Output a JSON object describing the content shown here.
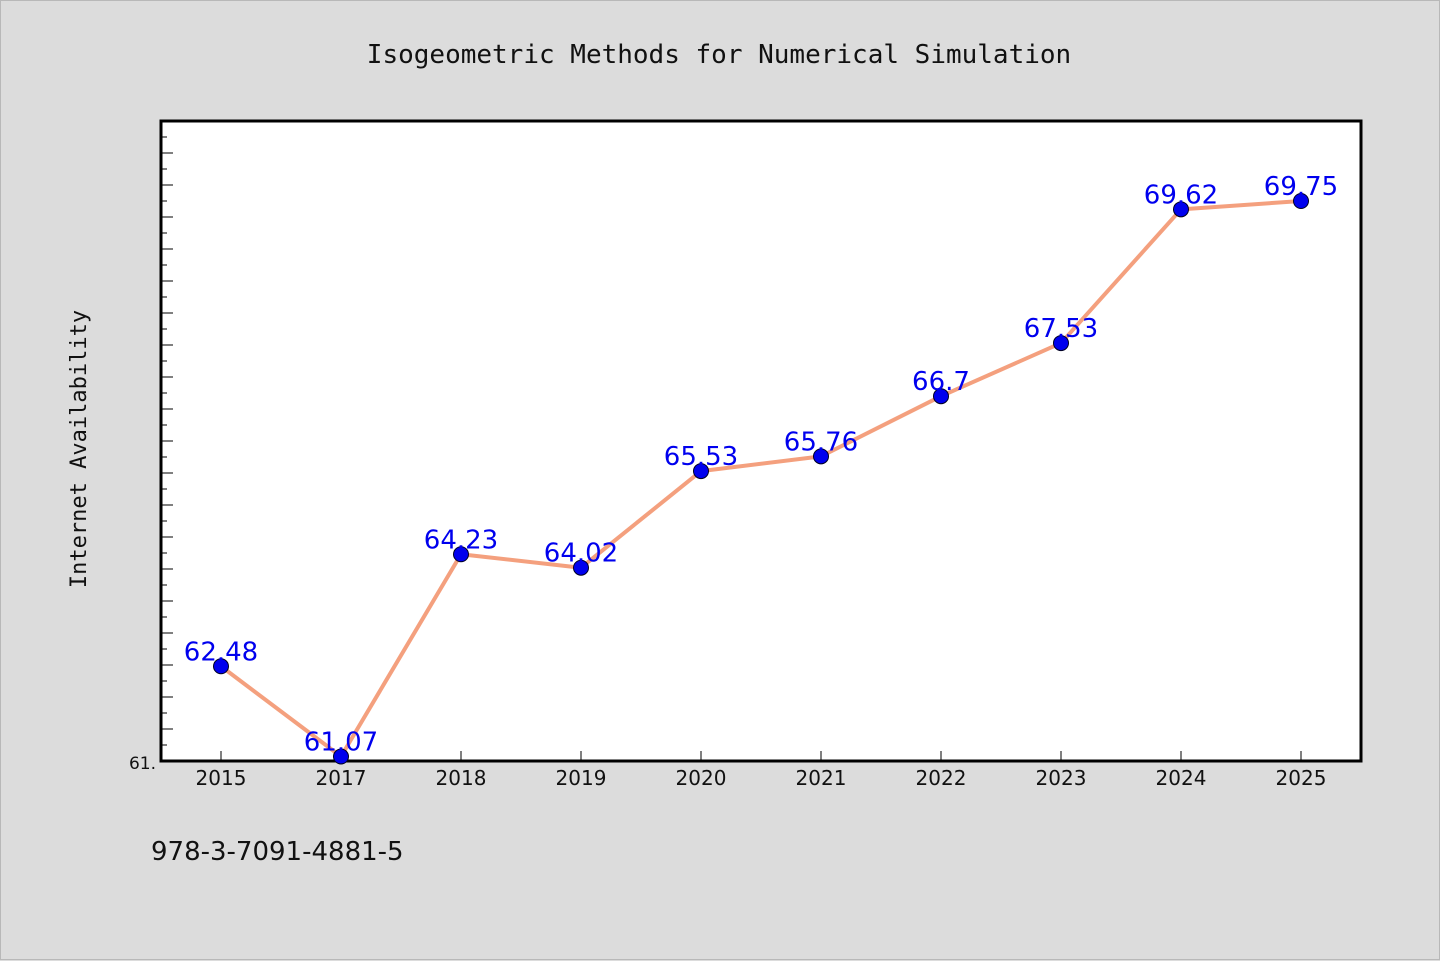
{
  "chart_data": {
    "type": "line",
    "title": "Isogeometric Methods for Numerical Simulation",
    "xlabel": "",
    "ylabel": "Internet Availability",
    "categories": [
      "2015",
      "2017",
      "2018",
      "2019",
      "2020",
      "2021",
      "2022",
      "2023",
      "2024",
      "2025"
    ],
    "series": [
      {
        "values": [
          62.48,
          61.07,
          64.23,
          64.02,
          65.53,
          65.76,
          66.7,
          67.53,
          69.62,
          69.75
        ],
        "data_labels": [
          "62.48",
          "61.07",
          "64.23",
          "64.02",
          "65.53",
          "65.76",
          "66.7",
          "67.53",
          "69.62",
          "69.75"
        ],
        "line_color": "#f4a07e",
        "marker_color": "#0000ee"
      }
    ],
    "ylim": [
      61.0,
      71.0
    ],
    "y_tick_label": "61.",
    "label_color": "#0000ee",
    "grid": false,
    "legend": "none"
  },
  "footer": {
    "isbn": "978-3-7091-4881-5"
  }
}
